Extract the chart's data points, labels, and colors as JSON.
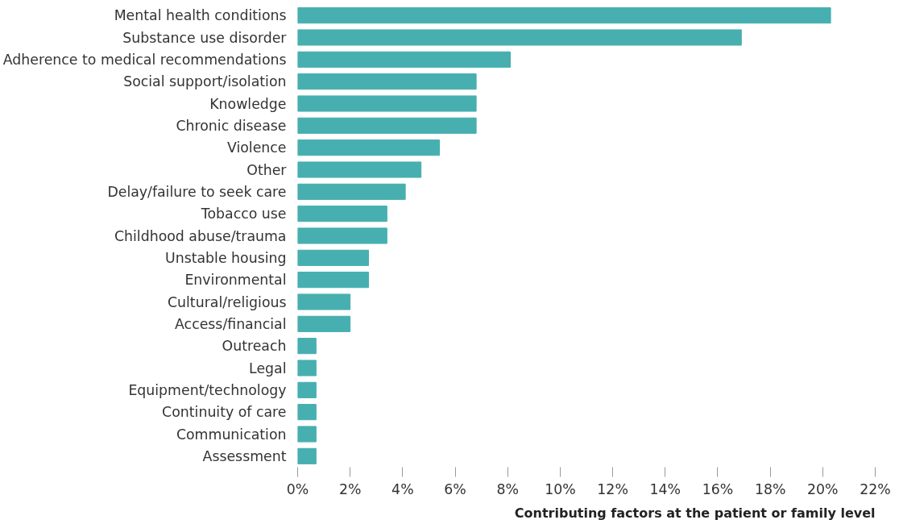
{
  "chart_data": {
    "type": "bar",
    "orientation": "horizontal",
    "xlabel": "Contributing factors at the patient or family level",
    "categories": [
      "Mental health conditions",
      "Substance use disorder",
      "Adherence to medical recommendations",
      "Social support/isolation",
      "Knowledge",
      "Chronic disease",
      "Violence",
      "Other",
      "Delay/failure to seek care",
      "Tobacco use",
      "Childhood abuse/trauma",
      "Unstable housing",
      "Environmental",
      "Cultural/religious",
      "Access/financial",
      "Outreach",
      "Legal",
      "Equipment/technology",
      "Continuity of care",
      "Communication",
      "Assessment"
    ],
    "values": [
      20.3,
      16.9,
      8.1,
      6.8,
      6.8,
      6.8,
      5.4,
      4.7,
      4.1,
      3.4,
      3.4,
      2.7,
      2.7,
      2.0,
      2.0,
      0.7,
      0.7,
      0.7,
      0.7,
      0.7,
      0.7
    ],
    "color": "#47afb0",
    "xlim": [
      0,
      22
    ],
    "xticks": [
      {
        "value": 0,
        "label": "0%"
      },
      {
        "value": 2,
        "label": "2%"
      },
      {
        "value": 4,
        "label": "4%"
      },
      {
        "value": 6,
        "label": "6%"
      },
      {
        "value": 8,
        "label": "8%"
      },
      {
        "value": 10,
        "label": "10%"
      },
      {
        "value": 12,
        "label": "12%"
      },
      {
        "value": 14,
        "label": "14%"
      },
      {
        "value": 16,
        "label": "16%"
      },
      {
        "value": 18,
        "label": "18%"
      },
      {
        "value": 20,
        "label": "20%"
      },
      {
        "value": 22,
        "label": "22%"
      }
    ],
    "grid": false
  }
}
